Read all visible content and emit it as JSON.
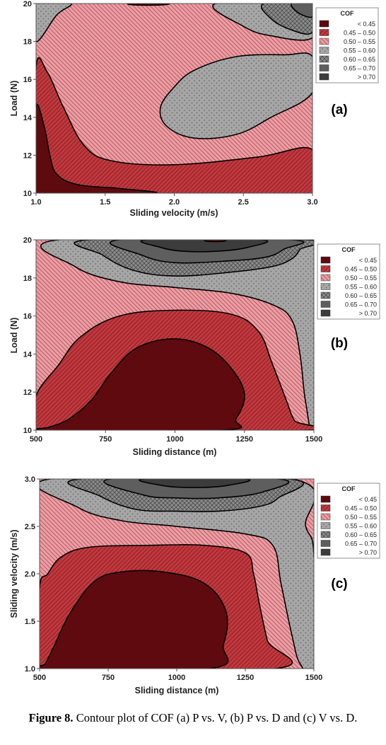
{
  "legend": {
    "title": "COF",
    "entries": [
      {
        "label": "< 0.45",
        "color": "#5e0a0e",
        "pattern": "solid"
      },
      {
        "label": "0.45 – 0.50",
        "color": "#c0393e",
        "pattern": "hatch"
      },
      {
        "label": "0.50 – 0.55",
        "color": "#ec9ea4",
        "pattern": "hatch"
      },
      {
        "label": "0.55 – 0.60",
        "color": "#a6a6a6",
        "pattern": "dots"
      },
      {
        "label": "0.60 – 0.65",
        "color": "#8c8c8c",
        "pattern": "cross"
      },
      {
        "label": "0.65 – 0.70",
        "color": "#5e5e5e",
        "pattern": "solid"
      },
      {
        "label": "> 0.70",
        "color": "#3c3c3c",
        "pattern": "solid"
      }
    ]
  },
  "chart_data": [
    {
      "type": "contour",
      "panel_label": "(a)",
      "xlabel": "Sliding velocity (m/s)",
      "ylabel": "Load (N)",
      "xlim": [
        1.0,
        3.0
      ],
      "ylim": [
        10,
        20
      ],
      "xticks": [
        "1.0",
        "1.5",
        "2.0",
        "2.5",
        "3.0"
      ],
      "yticks": [
        "10",
        "12",
        "14",
        "16",
        "18",
        "20"
      ],
      "legend_title": "COF",
      "regions": [
        {
          "level": "0.45 – 0.50",
          "points": [
            [
              1.0,
              10
            ],
            [
              3.0,
              10
            ],
            [
              3.0,
              12.3
            ],
            [
              2.6,
              11.9
            ],
            [
              2.0,
              11.5
            ],
            [
              1.55,
              11.7
            ],
            [
              1.35,
              12.5
            ],
            [
              1.2,
              14.5
            ],
            [
              1.08,
              16.4
            ],
            [
              1.0,
              16.6
            ]
          ]
        },
        {
          "level": "< 0.45",
          "points": [
            [
              1.0,
              10
            ],
            [
              1.85,
              10
            ],
            [
              1.6,
              10.25
            ],
            [
              1.3,
              10.45
            ],
            [
              1.15,
              11.0
            ],
            [
              1.1,
              12.0
            ],
            [
              1.06,
              13.5
            ],
            [
              1.0,
              14.5
            ]
          ]
        },
        {
          "level": "0.55 – 0.60",
          "points": [
            [
              2.0,
              15.6
            ],
            [
              2.15,
              16.5
            ],
            [
              2.45,
              17.2
            ],
            [
              2.8,
              17.3
            ],
            [
              3.0,
              17.2
            ],
            [
              3.0,
              15.3
            ],
            [
              2.7,
              14.0
            ],
            [
              2.45,
              13.1
            ],
            [
              2.15,
              12.9
            ],
            [
              1.95,
              13.5
            ],
            [
              1.9,
              14.5
            ]
          ]
        },
        {
          "level": "0.55 – 0.60",
          "points": [
            [
              1.0,
              18.0
            ],
            [
              1.0,
              20
            ],
            [
              1.25,
              20
            ],
            [
              1.15,
              19.4
            ]
          ]
        },
        {
          "level": "0.55 – 0.60",
          "points": [
            [
              2.3,
              20
            ],
            [
              3.0,
              20
            ],
            [
              3.0,
              18.2
            ],
            [
              2.7,
              18.3
            ],
            [
              2.5,
              18.8
            ]
          ]
        },
        {
          "level": "0.60 – 0.65",
          "points": [
            [
              2.65,
              20
            ],
            [
              3.0,
              20
            ],
            [
              3.0,
              18.5
            ],
            [
              2.85,
              18.6
            ],
            [
              2.7,
              19.2
            ]
          ]
        },
        {
          "level": "0.65 – 0.70",
          "points": [
            [
              2.85,
              20
            ],
            [
              3.0,
              20
            ],
            [
              3.0,
              19.3
            ],
            [
              2.9,
              19.5
            ]
          ]
        },
        {
          "level": "< 0.45",
          "points": [
            [
              1.68,
              20
            ],
            [
              1.95,
              20
            ],
            [
              1.9,
              19.92
            ],
            [
              1.72,
              19.92
            ]
          ]
        }
      ]
    },
    {
      "type": "contour",
      "panel_label": "(b)",
      "xlabel": "Sliding distance (m)",
      "ylabel": "Load (N)",
      "xlim": [
        500,
        1500
      ],
      "ylim": [
        10,
        20
      ],
      "xticks": [
        "500",
        "750",
        "1000",
        "1250",
        "1500"
      ],
      "yticks": [
        "10",
        "12",
        "14",
        "16",
        "18",
        "20"
      ],
      "legend_title": "COF",
      "regions": [
        {
          "level": "0.55 – 0.60",
          "points": [
            [
              580,
              20
            ],
            [
              1500,
              20
            ],
            [
              1500,
              10.2
            ],
            [
              1470,
              11.5
            ],
            [
              1450,
              14.0
            ],
            [
              1420,
              15.8
            ],
            [
              1350,
              16.6
            ],
            [
              1200,
              17.2
            ],
            [
              1000,
              17.5
            ],
            [
              800,
              17.8
            ],
            [
              640,
              18.6
            ]
          ]
        },
        {
          "level": "0.45 – 0.50",
          "points": [
            [
              500,
              10
            ],
            [
              1470,
              10
            ],
            [
              1430,
              10.5
            ],
            [
              1400,
              11.6
            ],
            [
              1350,
              13.5
            ],
            [
              1300,
              15.2
            ],
            [
              1200,
              16.1
            ],
            [
              1000,
              16.3
            ],
            [
              800,
              16.0
            ],
            [
              660,
              14.9
            ],
            [
              580,
              13.4
            ],
            [
              500,
              11.8
            ]
          ]
        },
        {
          "level": "< 0.45",
          "points": [
            [
              500,
              10
            ],
            [
              545,
              10.15
            ],
            [
              620,
              10.6
            ],
            [
              700,
              11.6
            ],
            [
              770,
              13.0
            ],
            [
              860,
              14.3
            ],
            [
              990,
              14.8
            ],
            [
              1110,
              14.4
            ],
            [
              1200,
              13.3
            ],
            [
              1250,
              11.9
            ],
            [
              1220,
              10.6
            ],
            [
              1170,
              10
            ]
          ]
        },
        {
          "level": "0.60 – 0.65",
          "points": [
            [
              690,
              20
            ],
            [
              1470,
              20
            ],
            [
              1450,
              19.5
            ],
            [
              1420,
              19.0
            ],
            [
              1350,
              18.6
            ],
            [
              1200,
              18.3
            ],
            [
              1000,
              18.1
            ],
            [
              850,
              18.4
            ],
            [
              740,
              19.2
            ]
          ]
        },
        {
          "level": "0.65 – 0.70",
          "points": [
            [
              800,
              20
            ],
            [
              1420,
              20
            ],
            [
              1390,
              19.5
            ],
            [
              1330,
              19.1
            ],
            [
              1200,
              18.9
            ],
            [
              1000,
              18.8
            ],
            [
              880,
              19.2
            ]
          ]
        },
        {
          "level": "> 0.70",
          "points": [
            [
              900,
              20
            ],
            [
              1310,
              20
            ],
            [
              1260,
              19.6
            ],
            [
              1150,
              19.4
            ],
            [
              1030,
              19.4
            ],
            [
              950,
              19.6
            ]
          ]
        },
        {
          "level": "< 0.45",
          "points": [
            [
              1110,
              20
            ],
            [
              1180,
              20
            ],
            [
              1170,
              19.92
            ],
            [
              1120,
              19.92
            ]
          ]
        }
      ]
    },
    {
      "type": "contour",
      "panel_label": "(c)",
      "xlabel": "Sliding distance (m)",
      "ylabel": "Sliding velocity (m/s)",
      "xlim": [
        500,
        1500
      ],
      "ylim": [
        1.0,
        3.0
      ],
      "xticks": [
        "500",
        "750",
        "1000",
        "1250",
        "1500"
      ],
      "yticks": [
        "1.0",
        "1.5",
        "2.0",
        "2.5",
        "3.0"
      ],
      "legend_title": "COF",
      "regions": [
        {
          "level": "0.55 – 0.60",
          "points": [
            [
              540,
              3.0
            ],
            [
              1420,
              3.0
            ],
            [
              1470,
              2.5
            ],
            [
              1500,
              2.2
            ],
            [
              1500,
              1.0
            ],
            [
              1450,
              1.05
            ],
            [
              1420,
              1.35
            ],
            [
              1380,
              1.9
            ],
            [
              1350,
              2.3
            ],
            [
              1250,
              2.42
            ],
            [
              1000,
              2.5
            ],
            [
              800,
              2.56
            ],
            [
              640,
              2.7
            ]
          ]
        },
        {
          "level": "0.45 – 0.50",
          "points": [
            [
              500,
              1.0
            ],
            [
              1360,
              1.0
            ],
            [
              1330,
              1.3
            ],
            [
              1300,
              1.7
            ],
            [
              1280,
              2.0
            ],
            [
              1250,
              2.22
            ],
            [
              1100,
              2.3
            ],
            [
              900,
              2.3
            ],
            [
              680,
              2.28
            ],
            [
              580,
              2.18
            ],
            [
              530,
              2.0
            ],
            [
              500,
              1.85
            ]
          ]
        },
        {
          "level": "< 0.45",
          "points": [
            [
              500,
              1.0
            ],
            [
              520,
              1.05
            ],
            [
              555,
              1.25
            ],
            [
              610,
              1.58
            ],
            [
              700,
              1.92
            ],
            [
              800,
              2.02
            ],
            [
              950,
              2.02
            ],
            [
              1100,
              1.9
            ],
            [
              1180,
              1.6
            ],
            [
              1170,
              1.25
            ],
            [
              1120,
              1.0
            ]
          ]
        },
        {
          "level": "0.60 – 0.65",
          "points": [
            [
              650,
              3.0
            ],
            [
              1410,
              3.0
            ],
            [
              1370,
              2.8
            ],
            [
              1300,
              2.71
            ],
            [
              1150,
              2.66
            ],
            [
              1000,
              2.66
            ],
            [
              850,
              2.68
            ],
            [
              720,
              2.82
            ]
          ]
        },
        {
          "level": "0.65 – 0.70",
          "points": [
            [
              760,
              3.0
            ],
            [
              1370,
              3.0
            ],
            [
              1310,
              2.86
            ],
            [
              1150,
              2.8
            ],
            [
              1000,
              2.8
            ],
            [
              880,
              2.83
            ]
          ]
        },
        {
          "level": "> 0.70",
          "points": [
            [
              880,
              3.0
            ],
            [
              1250,
              3.0
            ],
            [
              1180,
              2.93
            ],
            [
              1060,
              2.91
            ],
            [
              950,
              2.93
            ]
          ]
        }
      ]
    }
  ],
  "caption": {
    "label": "Figure 8.",
    "text": " Contour plot of COF (a) P vs. V, (b) P vs. D and (c) V vs. D."
  }
}
